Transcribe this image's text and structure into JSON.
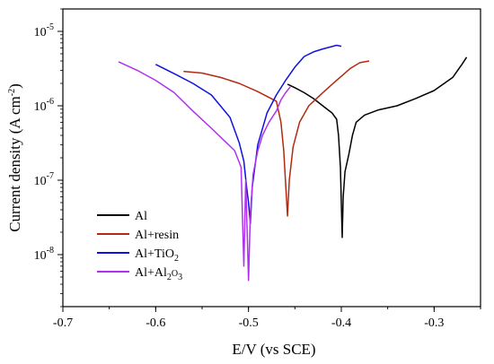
{
  "chart_data": {
    "type": "line",
    "title": "",
    "xlabel": "E/V (vs SCE)",
    "ylabel": "Current density (A cm⁻²)",
    "ylabel_text": "Current density (A cm",
    "ylabel_sup": "-2",
    "ylabel_close": ")",
    "x_scale": "linear",
    "y_scale": "log",
    "xlim": [
      -0.7,
      -0.25
    ],
    "ylim": [
      2e-09,
      2e-05
    ],
    "grid": false,
    "legend_position": "lower-left",
    "x_ticks": [
      -0.7,
      -0.6,
      -0.5,
      -0.4,
      -0.3
    ],
    "x_tick_labels": [
      "-0.7",
      "-0.6",
      "-0.5",
      "-0.4",
      "-0.3"
    ],
    "y_ticks": [
      {
        "value": 1e-08,
        "base": "10",
        "exp": "-8"
      },
      {
        "value": 1e-07,
        "base": "10",
        "exp": "-7"
      },
      {
        "value": 1e-06,
        "base": "10",
        "exp": "-6"
      },
      {
        "value": 1e-05,
        "base": "10",
        "exp": "-5"
      }
    ],
    "series": [
      {
        "name": "Al",
        "label_parts": {
          "main": "Al",
          "sub1": "",
          "mid": "",
          "sub2": ""
        },
        "color": "#000000",
        "points": [
          [
            -0.458,
            1.95e-06
          ],
          [
            -0.45,
            1.75e-06
          ],
          [
            -0.44,
            1.5e-06
          ],
          [
            -0.43,
            1.25e-06
          ],
          [
            -0.42,
            1e-06
          ],
          [
            -0.41,
            8e-07
          ],
          [
            -0.405,
            6.6e-07
          ],
          [
            -0.403,
            4e-07
          ],
          [
            -0.401,
            1.5e-07
          ],
          [
            -0.4,
            5e-08
          ],
          [
            -0.399,
            1.7e-08
          ],
          [
            -0.398,
            6e-08
          ],
          [
            -0.396,
            1.3e-07
          ],
          [
            -0.392,
            2.2e-07
          ],
          [
            -0.388,
            4e-07
          ],
          [
            -0.384,
            6e-07
          ],
          [
            -0.375,
            7.5e-07
          ],
          [
            -0.36,
            8.8e-07
          ],
          [
            -0.34,
            1e-06
          ],
          [
            -0.32,
            1.25e-06
          ],
          [
            -0.3,
            1.6e-06
          ],
          [
            -0.28,
            2.4e-06
          ],
          [
            -0.27,
            3.6e-06
          ],
          [
            -0.265,
            4.5e-06
          ]
        ]
      },
      {
        "name": "Al+resin",
        "label_parts": {
          "main": "Al+resin",
          "sub1": "",
          "mid": "",
          "sub2": ""
        },
        "color": "#b22a10",
        "points": [
          [
            -0.57,
            2.9e-06
          ],
          [
            -0.55,
            2.75e-06
          ],
          [
            -0.53,
            2.4e-06
          ],
          [
            -0.51,
            2e-06
          ],
          [
            -0.49,
            1.55e-06
          ],
          [
            -0.47,
            1.15e-06
          ],
          [
            -0.465,
            6e-07
          ],
          [
            -0.462,
            2.5e-07
          ],
          [
            -0.46,
            9e-08
          ],
          [
            -0.458,
            3.3e-08
          ],
          [
            -0.456,
            1e-07
          ],
          [
            -0.452,
            2.8e-07
          ],
          [
            -0.445,
            6e-07
          ],
          [
            -0.435,
            1e-06
          ],
          [
            -0.42,
            1.5e-06
          ],
          [
            -0.405,
            2.2e-06
          ],
          [
            -0.39,
            3.2e-06
          ],
          [
            -0.38,
            3.8e-06
          ],
          [
            -0.37,
            4e-06
          ]
        ]
      },
      {
        "name": "Al+TiO2",
        "label_parts": {
          "main": "Al+TiO",
          "sub1": "2",
          "mid": "",
          "sub2": ""
        },
        "color": "#1010e0",
        "points": [
          [
            -0.6,
            3.6e-06
          ],
          [
            -0.58,
            2.7e-06
          ],
          [
            -0.56,
            2e-06
          ],
          [
            -0.54,
            1.4e-06
          ],
          [
            -0.52,
            7e-07
          ],
          [
            -0.51,
            3.2e-07
          ],
          [
            -0.505,
            1.8e-07
          ],
          [
            -0.502,
            8e-08
          ],
          [
            -0.5,
            5e-08
          ],
          [
            -0.498,
            2.6e-08
          ],
          [
            -0.496,
            8e-08
          ],
          [
            -0.49,
            3e-07
          ],
          [
            -0.48,
            8e-07
          ],
          [
            -0.47,
            1.4e-06
          ],
          [
            -0.46,
            2.2e-06
          ],
          [
            -0.45,
            3.3e-06
          ],
          [
            -0.44,
            4.6e-06
          ],
          [
            -0.43,
            5.3e-06
          ],
          [
            -0.42,
            5.8e-06
          ],
          [
            -0.405,
            6.5e-06
          ],
          [
            -0.4,
            6.3e-06
          ]
        ]
      },
      {
        "name": "Al+Al2O3",
        "label_parts": {
          "main": "Al+Al",
          "sub1": "2",
          "mid": "O",
          "sub2": "3"
        },
        "color": "#b030f0",
        "points": [
          [
            -0.64,
            3.9e-06
          ],
          [
            -0.62,
            3e-06
          ],
          [
            -0.6,
            2.2e-06
          ],
          [
            -0.58,
            1.5e-06
          ],
          [
            -0.56,
            8.5e-07
          ],
          [
            -0.54,
            5e-07
          ],
          [
            -0.525,
            3.3e-07
          ],
          [
            -0.515,
            2.5e-07
          ],
          [
            -0.508,
            1.5e-07
          ],
          [
            -0.505,
            7e-09
          ],
          [
            -0.503,
            1e-07
          ],
          [
            -0.5,
            4.5e-09
          ],
          [
            -0.498,
            3.5e-08
          ],
          [
            -0.495,
            1.2e-07
          ],
          [
            -0.49,
            2.5e-07
          ],
          [
            -0.485,
            4e-07
          ],
          [
            -0.478,
            6e-07
          ],
          [
            -0.47,
            8.5e-07
          ],
          [
            -0.465,
            1.2e-06
          ],
          [
            -0.46,
            1.5e-06
          ],
          [
            -0.455,
            1.8e-06
          ]
        ]
      }
    ]
  }
}
